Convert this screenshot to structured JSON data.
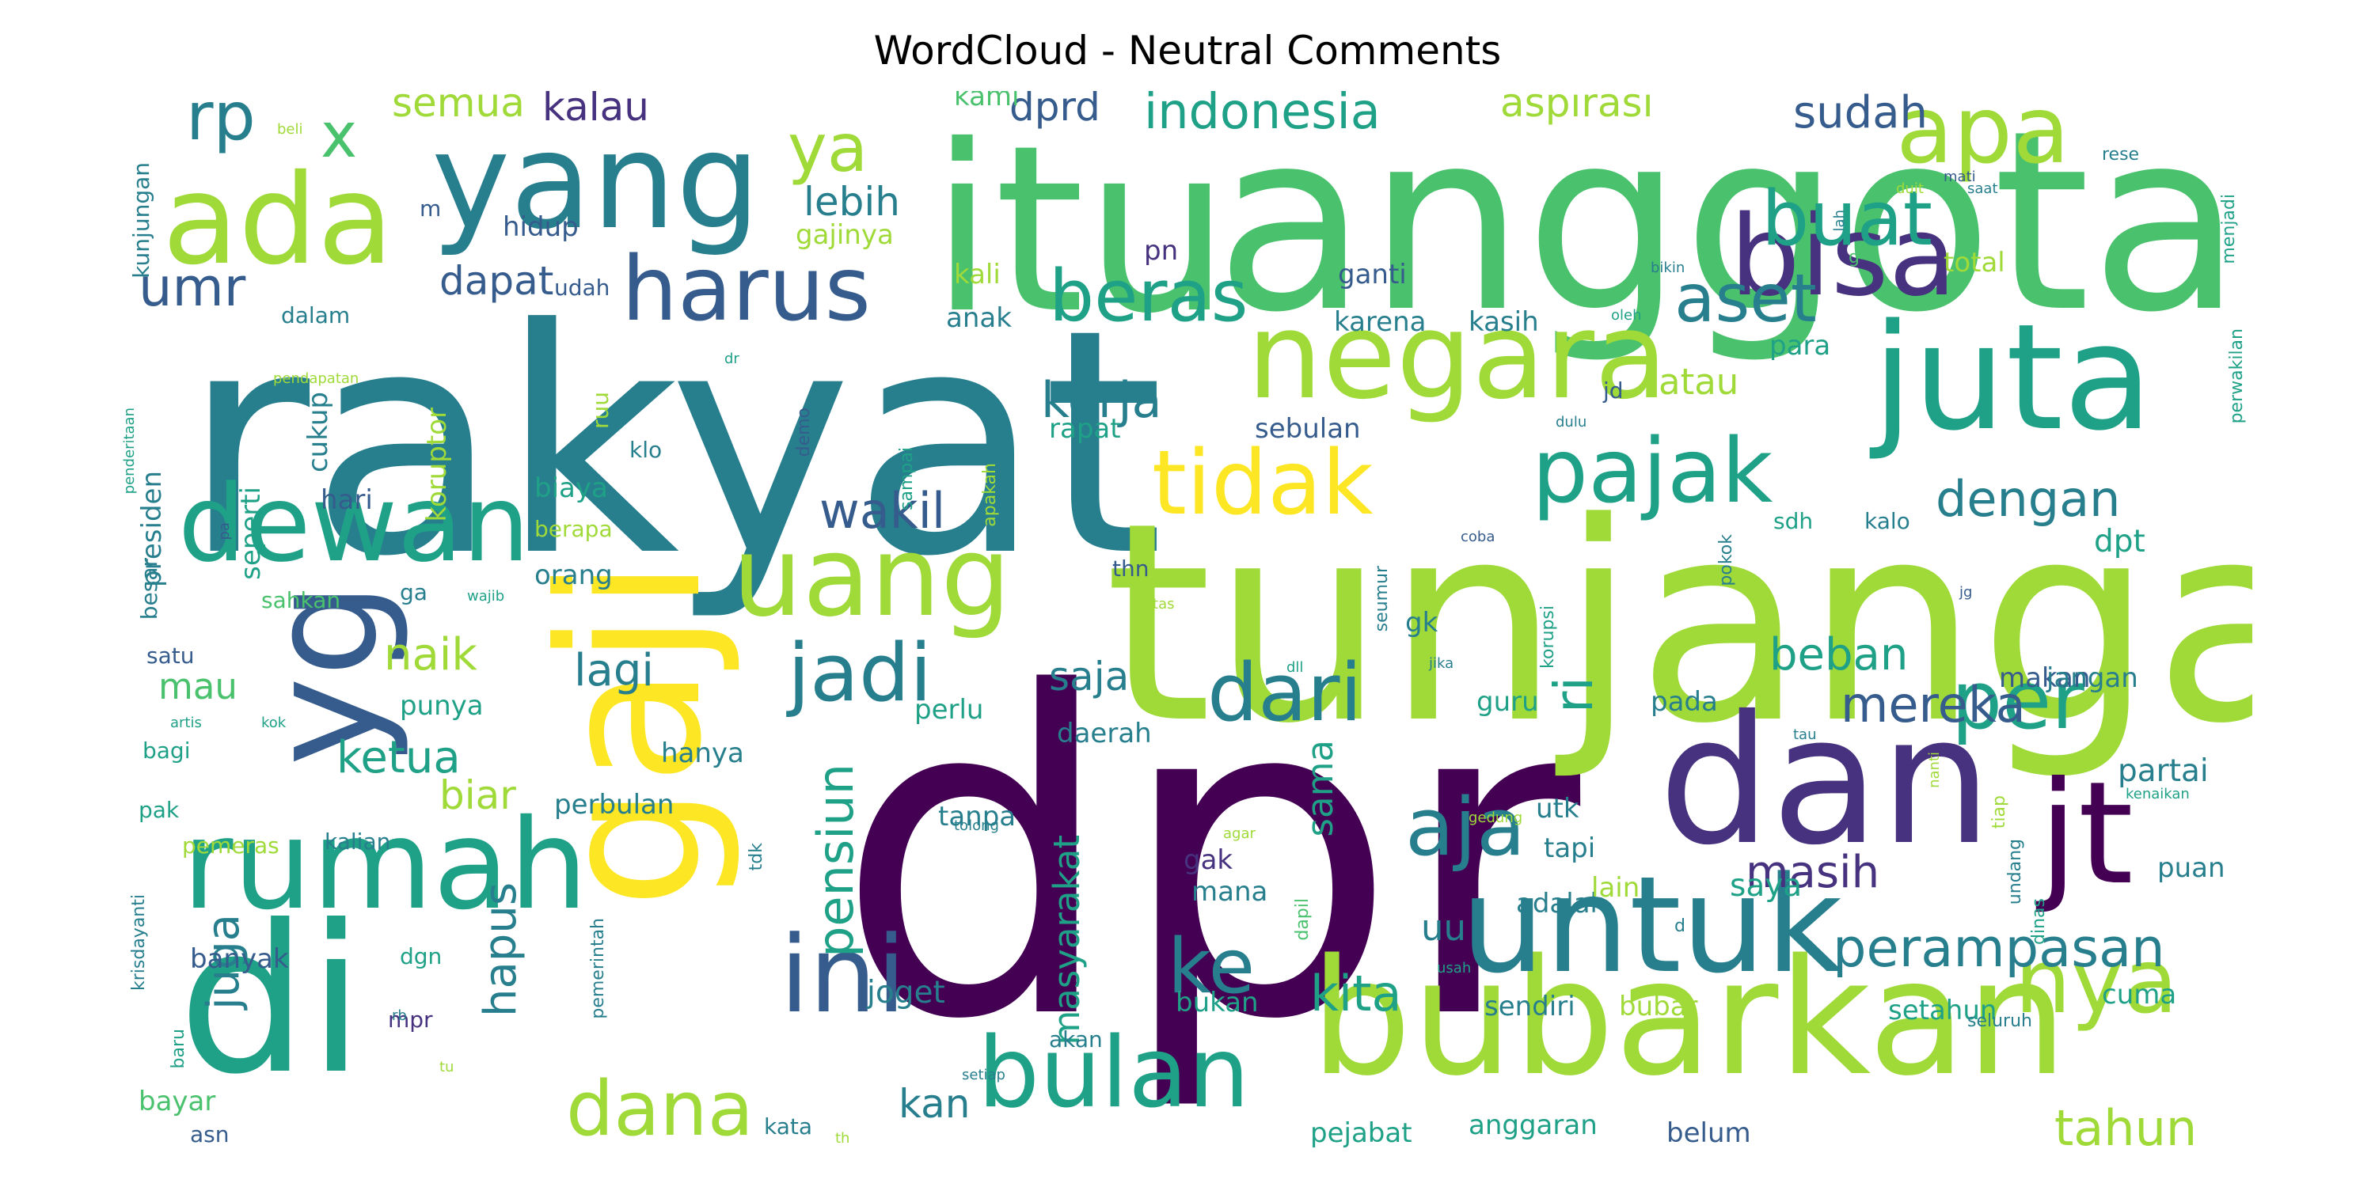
{
  "title": "WordCloud - Neutral Comments",
  "palette": [
    "#440154",
    "#46327e",
    "#365c8d",
    "#277f8e",
    "#1fa187",
    "#4ac16d",
    "#a0da39",
    "#fde725"
  ],
  "words": [
    {
      "text": "dpr",
      "size": 1.0,
      "tone": 0.02
    },
    {
      "text": "rakyat",
      "size": 0.7,
      "tone": 0.42
    },
    {
      "text": "tunjangan",
      "size": 0.62,
      "tone": 0.92
    },
    {
      "text": "anggota",
      "size": 0.56,
      "tone": 0.68
    },
    {
      "text": "itu",
      "size": 0.52,
      "tone": 0.72
    },
    {
      "text": "di",
      "size": 0.46,
      "tone": 0.55
    },
    {
      "text": "gaji",
      "size": 0.44,
      "tone": 0.95
    },
    {
      "text": "dan",
      "size": 0.4,
      "tone": 0.18
    },
    {
      "text": "bubarkan",
      "size": 0.36,
      "tone": 0.8
    },
    {
      "text": "yg",
      "size": 0.34,
      "tone": 0.3
    },
    {
      "text": "juta",
      "size": 0.33,
      "tone": 0.55
    },
    {
      "text": "jt",
      "size": 0.32,
      "tone": 0.05
    },
    {
      "text": "yang",
      "size": 0.3,
      "tone": 0.38
    },
    {
      "text": "untuk",
      "size": 0.3,
      "tone": 0.4
    },
    {
      "text": "rumah",
      "size": 0.28,
      "tone": 0.5
    },
    {
      "text": "ada",
      "size": 0.28,
      "tone": 0.86
    },
    {
      "text": "negara",
      "size": 0.27,
      "tone": 0.88
    },
    {
      "text": "uang",
      "size": 0.25,
      "tone": 0.88
    },
    {
      "text": "bisa",
      "size": 0.25,
      "tone": 0.2
    },
    {
      "text": "dewan",
      "size": 0.24,
      "tone": 0.6
    },
    {
      "text": "ini",
      "size": 0.24,
      "tone": 0.24
    },
    {
      "text": "bulan",
      "size": 0.22,
      "tone": 0.58
    },
    {
      "text": "apa",
      "size": 0.21,
      "tone": 0.86
    },
    {
      "text": "nya",
      "size": 0.2,
      "tone": 0.86
    },
    {
      "text": "tidak",
      "size": 0.2,
      "tone": 0.97
    },
    {
      "text": "pajak",
      "size": 0.2,
      "tone": 0.55
    },
    {
      "text": "harus",
      "size": 0.2,
      "tone": 0.28
    },
    {
      "text": "dari",
      "size": 0.18,
      "tone": 0.36
    },
    {
      "text": "per",
      "size": 0.18,
      "tone": 0.6
    },
    {
      "text": "aja",
      "size": 0.18,
      "tone": 0.36
    },
    {
      "text": "jadi",
      "size": 0.18,
      "tone": 0.48
    },
    {
      "text": "dana",
      "size": 0.17,
      "tone": 0.86
    },
    {
      "text": "ke",
      "size": 0.17,
      "tone": 0.4
    },
    {
      "text": "buat",
      "size": 0.17,
      "tone": 0.62
    },
    {
      "text": "beras",
      "size": 0.16,
      "tone": 0.58
    },
    {
      "text": "aset",
      "size": 0.15,
      "tone": 0.48
    },
    {
      "text": "ya",
      "size": 0.15,
      "tone": 0.82
    },
    {
      "text": "rp",
      "size": 0.15,
      "tone": 0.36
    },
    {
      "text": "x",
      "size": 0.14,
      "tone": 0.68
    },
    {
      "text": "umr",
      "size": 0.12,
      "tone": 0.22
    },
    {
      "text": "ri",
      "size": 0.12,
      "tone": 0.62
    },
    {
      "text": "perampasan",
      "size": 0.12,
      "tone": 0.46
    },
    {
      "text": "mereka",
      "size": 0.11,
      "tone": 0.28
    },
    {
      "text": "kerja",
      "size": 0.11,
      "tone": 0.44
    },
    {
      "text": "tahun",
      "size": 0.11,
      "tone": 0.86
    },
    {
      "text": "wakil",
      "size": 0.11,
      "tone": 0.3
    },
    {
      "text": "kita",
      "size": 0.11,
      "tone": 0.52
    },
    {
      "text": "indonesia",
      "size": 0.11,
      "tone": 0.52
    },
    {
      "text": "dengan",
      "size": 0.11,
      "tone": 0.36
    },
    {
      "text": "pensiun",
      "size": 0.11,
      "tone": 0.64
    },
    {
      "text": "hapus",
      "size": 0.1,
      "tone": 0.44
    },
    {
      "text": "masih",
      "size": 0.1,
      "tone": 0.16
    },
    {
      "text": "ketua",
      "size": 0.1,
      "tone": 0.5
    },
    {
      "text": "lagi",
      "size": 0.1,
      "tone": 0.44
    },
    {
      "text": "sudah",
      "size": 0.1,
      "tone": 0.34
    },
    {
      "text": "juga",
      "size": 0.1,
      "tone": 0.4
    },
    {
      "text": "beban",
      "size": 0.1,
      "tone": 0.62
    },
    {
      "text": "naik",
      "size": 0.1,
      "tone": 0.9
    },
    {
      "text": "dprd",
      "size": 0.09,
      "tone": 0.24
    },
    {
      "text": "aspirasi",
      "size": 0.09,
      "tone": 0.92
    },
    {
      "text": "semua",
      "size": 0.09,
      "tone": 0.92
    },
    {
      "text": "kalau",
      "size": 0.09,
      "tone": 0.16
    },
    {
      "text": "lebih",
      "size": 0.09,
      "tone": 0.44
    },
    {
      "text": "dapat",
      "size": 0.09,
      "tone": 0.26
    },
    {
      "text": "biar",
      "size": 0.09,
      "tone": 0.92
    },
    {
      "text": "kan",
      "size": 0.09,
      "tone": 0.36
    },
    {
      "text": "saja",
      "size": 0.09,
      "tone": 0.44
    },
    {
      "text": "atau",
      "size": 0.08,
      "tone": 0.86
    },
    {
      "text": "mau",
      "size": 0.08,
      "tone": 0.74
    },
    {
      "text": "sama",
      "size": 0.08,
      "tone": 0.6
    },
    {
      "text": "masyarakat",
      "size": 0.08,
      "tone": 0.6
    },
    {
      "text": "uu",
      "size": 0.08,
      "tone": 0.4
    },
    {
      "text": "saya",
      "size": 0.07,
      "tone": 0.54
    },
    {
      "text": "joget",
      "size": 0.07,
      "tone": 0.38
    },
    {
      "text": "dpt",
      "size": 0.07,
      "tone": 0.64
    },
    {
      "text": "partai",
      "size": 0.07,
      "tone": 0.42
    },
    {
      "text": "hidup",
      "size": 0.06,
      "tone": 0.34
    },
    {
      "text": "koruptor",
      "size": 0.06,
      "tone": 0.82
    },
    {
      "text": "cukup",
      "size": 0.06,
      "tone": 0.4
    },
    {
      "text": "presiden",
      "size": 0.06,
      "tone": 0.4
    },
    {
      "text": "biaya",
      "size": 0.06,
      "tone": 0.5
    },
    {
      "text": "orang",
      "size": 0.06,
      "tone": 0.4
    },
    {
      "text": "hari",
      "size": 0.06,
      "tone": 0.3
    },
    {
      "text": "seperti",
      "size": 0.06,
      "tone": 0.5
    },
    {
      "text": "kali",
      "size": 0.06,
      "tone": 0.82
    },
    {
      "text": "anak",
      "size": 0.06,
      "tone": 0.44
    },
    {
      "text": "gajinya",
      "size": 0.06,
      "tone": 0.82
    },
    {
      "text": "kami",
      "size": 0.06,
      "tone": 0.78
    },
    {
      "text": "pn",
      "size": 0.06,
      "tone": 0.2
    },
    {
      "text": "ganti",
      "size": 0.06,
      "tone": 0.26
    },
    {
      "text": "karena",
      "size": 0.06,
      "tone": 0.36
    },
    {
      "text": "kasih",
      "size": 0.06,
      "tone": 0.44
    },
    {
      "text": "sebulan",
      "size": 0.06,
      "tone": 0.3
    },
    {
      "text": "rapat",
      "size": 0.06,
      "tone": 0.56
    },
    {
      "text": "para",
      "size": 0.06,
      "tone": 0.64
    },
    {
      "text": "total",
      "size": 0.06,
      "tone": 0.82
    },
    {
      "text": "guru",
      "size": 0.06,
      "tone": 0.62
    },
    {
      "text": "pada",
      "size": 0.06,
      "tone": 0.44
    },
    {
      "text": "gak",
      "size": 0.06,
      "tone": 0.14
    },
    {
      "text": "mana",
      "size": 0.06,
      "tone": 0.48
    },
    {
      "text": "daerah",
      "size": 0.06,
      "tone": 0.36
    },
    {
      "text": "perlu",
      "size": 0.06,
      "tone": 0.56
    },
    {
      "text": "makan",
      "size": 0.06,
      "tone": 0.34
    },
    {
      "text": "jangan",
      "size": 0.06,
      "tone": 0.36
    },
    {
      "text": "cuma",
      "size": 0.06,
      "tone": 0.52
    },
    {
      "text": "setahun",
      "size": 0.06,
      "tone": 0.52
    },
    {
      "text": "bubar",
      "size": 0.06,
      "tone": 0.82
    },
    {
      "text": "sendiri",
      "size": 0.06,
      "tone": 0.4
    },
    {
      "text": "puan",
      "size": 0.06,
      "tone": 0.46
    },
    {
      "text": "bukan",
      "size": 0.06,
      "tone": 0.54
    },
    {
      "text": "adalah",
      "size": 0.06,
      "tone": 0.48
    },
    {
      "text": "belum",
      "size": 0.06,
      "tone": 0.3
    },
    {
      "text": "anggaran",
      "size": 0.06,
      "tone": 0.64
    },
    {
      "text": "pejabat",
      "size": 0.06,
      "tone": 0.62
    },
    {
      "text": "banyak",
      "size": 0.06,
      "tone": 0.28
    },
    {
      "text": "bayar",
      "size": 0.06,
      "tone": 0.74
    },
    {
      "text": "tanpa",
      "size": 0.06,
      "tone": 0.36
    },
    {
      "text": "perbulan",
      "size": 0.06,
      "tone": 0.4
    },
    {
      "text": "punya",
      "size": 0.06,
      "tone": 0.6
    },
    {
      "text": "hanya",
      "size": 0.06,
      "tone": 0.36
    },
    {
      "text": "utk",
      "size": 0.06,
      "tone": 0.4
    },
    {
      "text": "tapi",
      "size": 0.06,
      "tone": 0.36
    },
    {
      "text": "lain",
      "size": 0.06,
      "tone": 0.86
    },
    {
      "text": "gk",
      "size": 0.06,
      "tone": 0.48
    },
    {
      "text": "bagi",
      "size": 0.05,
      "tone": 0.56
    },
    {
      "text": "satu",
      "size": 0.05,
      "tone": 0.26
    },
    {
      "text": "sahkan",
      "size": 0.05,
      "tone": 0.66
    },
    {
      "text": "besar",
      "size": 0.05,
      "tone": 0.42
    },
    {
      "text": "pak",
      "size": 0.05,
      "tone": 0.56
    },
    {
      "text": "pemeras",
      "size": 0.05,
      "tone": 0.82
    },
    {
      "text": "kalian",
      "size": 0.05,
      "tone": 0.4
    },
    {
      "text": "dgn",
      "size": 0.05,
      "tone": 0.56
    },
    {
      "text": "mpr",
      "size": 0.05,
      "tone": 0.2
    },
    {
      "text": "asn",
      "size": 0.05,
      "tone": 0.3
    },
    {
      "text": "akan",
      "size": 0.05,
      "tone": 0.4
    },
    {
      "text": "kata",
      "size": 0.05,
      "tone": 0.4
    },
    {
      "text": "ga",
      "size": 0.05,
      "tone": 0.36
    },
    {
      "text": "sdh",
      "size": 0.05,
      "tone": 0.52
    },
    {
      "text": "kalo",
      "size": 0.05,
      "tone": 0.36
    },
    {
      "text": "thn",
      "size": 0.05,
      "tone": 0.3
    },
    {
      "text": "jd",
      "size": 0.05,
      "tone": 0.24
    },
    {
      "text": "klo",
      "size": 0.05,
      "tone": 0.36
    },
    {
      "text": "berapa",
      "size": 0.05,
      "tone": 0.82
    },
    {
      "text": "ruu",
      "size": 0.05,
      "tone": 0.82
    },
    {
      "text": "udah",
      "size": 0.05,
      "tone": 0.3
    },
    {
      "text": "dalam",
      "size": 0.05,
      "tone": 0.4
    },
    {
      "text": "kunjungan",
      "size": 0.05,
      "tone": 0.46
    },
    {
      "text": "m",
      "size": 0.05,
      "tone": 0.3
    },
    {
      "text": "sampai",
      "size": 0.04,
      "tone": 0.54
    },
    {
      "text": "apakah",
      "size": 0.04,
      "tone": 0.82
    },
    {
      "text": "demo",
      "size": 0.04,
      "tone": 0.22
    },
    {
      "text": "pokok",
      "size": 0.04,
      "tone": 0.42
    },
    {
      "text": "korupsi",
      "size": 0.04,
      "tone": 0.64
    },
    {
      "text": "seumur",
      "size": 0.04,
      "tone": 0.46
    },
    {
      "text": "dinas",
      "size": 0.04,
      "tone": 0.52
    },
    {
      "text": "undang",
      "size": 0.04,
      "tone": 0.4
    },
    {
      "text": "tiap",
      "size": 0.04,
      "tone": 0.82
    },
    {
      "text": "menjadi",
      "size": 0.04,
      "tone": 0.6
    },
    {
      "text": "perwakilan",
      "size": 0.04,
      "tone": 0.6
    },
    {
      "text": "seluruh",
      "size": 0.04,
      "tone": 0.4
    },
    {
      "text": "rese",
      "size": 0.04,
      "tone": 0.36
    },
    {
      "text": "saat",
      "size": 0.03,
      "tone": 0.4
    },
    {
      "text": "mati",
      "size": 0.03,
      "tone": 0.26
    },
    {
      "text": "duit",
      "size": 0.03,
      "tone": 0.92
    },
    {
      "text": "lah",
      "size": 0.03,
      "tone": 0.4
    },
    {
      "text": "bikin",
      "size": 0.03,
      "tone": 0.44
    },
    {
      "text": "g",
      "size": 0.04,
      "tone": 0.78
    },
    {
      "text": "oleh",
      "size": 0.03,
      "tone": 0.58
    },
    {
      "text": "dulu",
      "size": 0.03,
      "tone": 0.44
    },
    {
      "text": "coba",
      "size": 0.03,
      "tone": 0.3
    },
    {
      "text": "jg",
      "size": 0.03,
      "tone": 0.3
    },
    {
      "text": "jika",
      "size": 0.03,
      "tone": 0.42
    },
    {
      "text": "dll",
      "size": 0.03,
      "tone": 0.64
    },
    {
      "text": "atas",
      "size": 0.03,
      "tone": 0.92
    },
    {
      "text": "wajib",
      "size": 0.03,
      "tone": 0.6
    },
    {
      "text": "tau",
      "size": 0.03,
      "tone": 0.36
    },
    {
      "text": "nanti",
      "size": 0.03,
      "tone": 0.88
    },
    {
      "text": "kenaikan",
      "size": 0.03,
      "tone": 0.6
    },
    {
      "text": "gedung",
      "size": 0.03,
      "tone": 0.92
    },
    {
      "text": "agar",
      "size": 0.03,
      "tone": 0.92
    },
    {
      "text": "tolong",
      "size": 0.03,
      "tone": 0.4
    },
    {
      "text": "usah",
      "size": 0.03,
      "tone": 0.64
    },
    {
      "text": "dapil",
      "size": 0.04,
      "tone": 0.66
    },
    {
      "text": "pemerintah",
      "size": 0.04,
      "tone": 0.46
    },
    {
      "text": "tdk",
      "size": 0.04,
      "tone": 0.48
    },
    {
      "text": "d",
      "size": 0.04,
      "tone": 0.46
    },
    {
      "text": "setiap",
      "size": 0.03,
      "tone": 0.36
    },
    {
      "text": "th",
      "size": 0.03,
      "tone": 0.8
    },
    {
      "text": "tu",
      "size": 0.03,
      "tone": 0.86
    },
    {
      "text": "rb",
      "size": 0.03,
      "tone": 0.4
    },
    {
      "text": "baru",
      "size": 0.04,
      "tone": 0.5
    },
    {
      "text": "krisdayanti",
      "size": 0.04,
      "tone": 0.46
    },
    {
      "text": "artis",
      "size": 0.03,
      "tone": 0.58
    },
    {
      "text": "kok",
      "size": 0.03,
      "tone": 0.54
    },
    {
      "text": "pa",
      "size": 0.03,
      "tone": 0.3
    },
    {
      "text": "penderitaan",
      "size": 0.03,
      "tone": 0.62
    },
    {
      "text": "pendapatan",
      "size": 0.03,
      "tone": 0.92
    },
    {
      "text": "dr",
      "size": 0.03,
      "tone": 0.6
    },
    {
      "text": "beli",
      "size": 0.03,
      "tone": 0.92
    }
  ]
}
